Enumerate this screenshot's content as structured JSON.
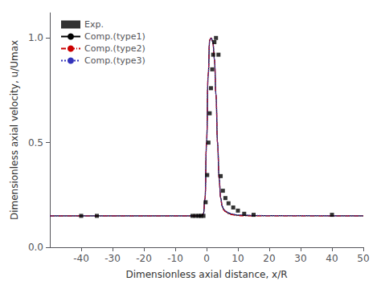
{
  "chart_data": {
    "type": "line",
    "xlabel": "Dimensionless axial distance, x/R",
    "ylabel": "Dimensionless axial velocity, u/Umax",
    "xlim": [
      -50,
      50
    ],
    "ylim": [
      0.0,
      1.12
    ],
    "xticks": [
      -40,
      -30,
      -20,
      -10,
      0,
      10,
      20,
      30,
      40,
      50
    ],
    "yticks": [
      {
        "value": 0.0,
        "label": "0.0"
      },
      0.5,
      {
        "value": 1.0,
        "label": "1.0"
      }
    ],
    "grid": false,
    "legend": "upper left",
    "series": [
      {
        "name": "Exp.",
        "type": "scatter",
        "marker": "square",
        "color": "#000000",
        "x": [
          -40.0,
          -35.0,
          -4.5,
          -3.5,
          -2.5,
          -1.8,
          -1.0,
          -0.3,
          0.2,
          0.6,
          1.0,
          1.4,
          1.8,
          2.1,
          2.5,
          3.0,
          3.8,
          4.5,
          5.2,
          6.0,
          7.0,
          8.5,
          10.0,
          12.0,
          15.0,
          40.0
        ],
        "values": [
          0.15,
          0.15,
          0.15,
          0.15,
          0.15,
          0.15,
          0.15,
          0.215,
          0.345,
          0.5,
          0.64,
          0.76,
          0.85,
          0.92,
          0.98,
          1.0,
          0.92,
          0.34,
          0.27,
          0.235,
          0.21,
          0.19,
          0.175,
          0.16,
          0.155,
          0.155
        ]
      },
      {
        "name": "Comp.(type1)",
        "type": "line",
        "line_style": "solid",
        "color": "#000000",
        "x": [
          -50,
          -5.0,
          -2.0,
          -1.5,
          -1.0,
          -0.5,
          0.0,
          0.5,
          1.0,
          1.5,
          2.0,
          2.5,
          3.0,
          3.5,
          4.0,
          4.5,
          5.0,
          5.5,
          6.0,
          7.0,
          8.0,
          9.0,
          10.0,
          12.0,
          15.0,
          20.0,
          50.0
        ],
        "values": [
          0.15,
          0.15,
          0.15,
          0.152,
          0.16,
          0.23,
          0.5,
          0.82,
          0.99,
          1.0,
          0.98,
          0.9,
          0.73,
          0.5,
          0.33,
          0.235,
          0.195,
          0.18,
          0.172,
          0.163,
          0.158,
          0.155,
          0.153,
          0.152,
          0.151,
          0.151,
          0.15
        ]
      },
      {
        "name": "Comp.(type2)",
        "type": "line",
        "line_style": "dashdot",
        "color": "#cc0000",
        "x": [
          -50,
          -5.0,
          -2.0,
          -1.5,
          -1.0,
          -0.5,
          0.0,
          0.5,
          1.0,
          1.5,
          2.0,
          2.5,
          3.0,
          3.5,
          4.0,
          4.5,
          5.0,
          5.5,
          6.0,
          7.0,
          8.0,
          9.0,
          10.0,
          12.0,
          15.0,
          20.0,
          50.0
        ],
        "values": [
          0.15,
          0.15,
          0.15,
          0.152,
          0.161,
          0.232,
          0.505,
          0.825,
          0.992,
          1.0,
          0.978,
          0.898,
          0.728,
          0.498,
          0.328,
          0.233,
          0.193,
          0.178,
          0.17,
          0.161,
          0.156,
          0.153,
          0.151,
          0.15,
          0.15,
          0.15,
          0.15
        ]
      },
      {
        "name": "Comp.(type3)",
        "type": "line",
        "line_style": "dotted",
        "color": "#3333bb",
        "x": [
          -50,
          -5.0,
          -2.0,
          -1.5,
          -1.0,
          -0.5,
          0.0,
          0.5,
          1.0,
          1.5,
          2.0,
          2.5,
          3.0,
          3.5,
          4.0,
          4.5,
          5.0,
          5.5,
          6.0,
          7.0,
          8.0,
          9.0,
          10.0,
          12.0,
          15.0,
          20.0,
          50.0
        ],
        "values": [
          0.15,
          0.15,
          0.15,
          0.151,
          0.159,
          0.228,
          0.495,
          0.815,
          0.988,
          1.0,
          0.982,
          0.902,
          0.732,
          0.502,
          0.332,
          0.237,
          0.197,
          0.182,
          0.174,
          0.165,
          0.16,
          0.157,
          0.155,
          0.154,
          0.152,
          0.151,
          0.15
        ]
      }
    ]
  }
}
